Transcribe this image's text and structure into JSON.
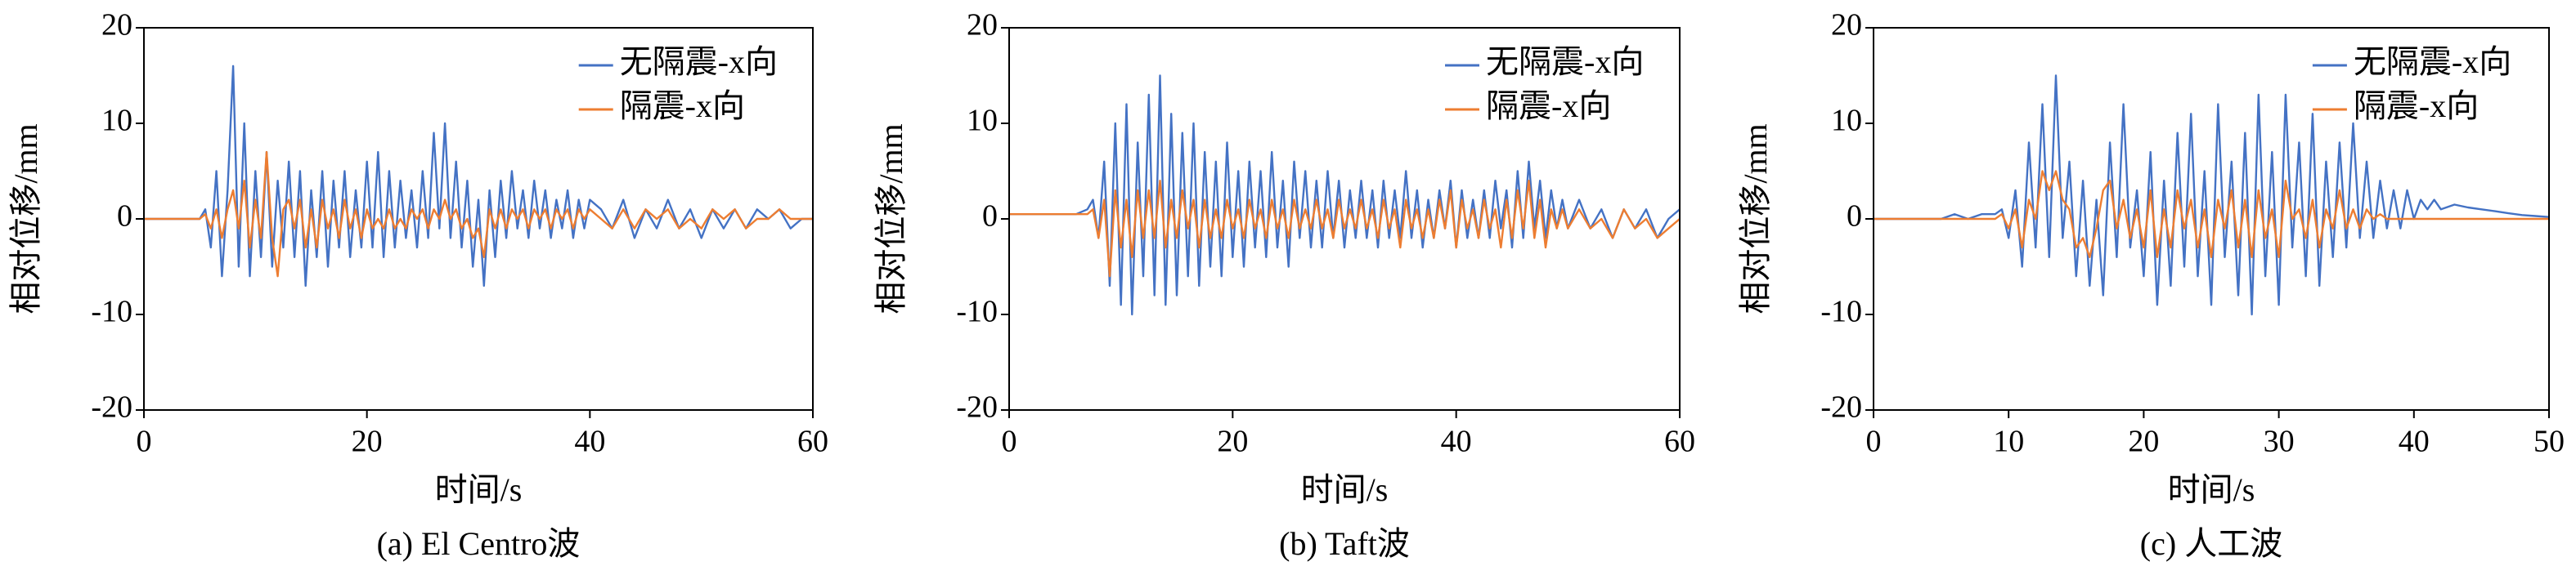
{
  "chart_data": [
    {
      "type": "line",
      "caption": "(a) El Centro波",
      "xlabel": "时间/s",
      "ylabel": "相对位移/mm",
      "xlim": [
        0,
        60
      ],
      "xticks": [
        0,
        20,
        40,
        60
      ],
      "ylim": [
        -20,
        20
      ],
      "yticks": [
        -20,
        -10,
        0,
        10,
        20
      ],
      "legend": "upper right",
      "x": [
        0,
        1,
        2,
        3,
        4,
        5,
        5.5,
        6,
        6.5,
        7,
        7.5,
        8,
        8.5,
        9,
        9.5,
        10,
        10.5,
        11,
        11.5,
        12,
        12.5,
        13,
        13.5,
        14,
        14.5,
        15,
        15.5,
        16,
        16.5,
        17,
        17.5,
        18,
        18.5,
        19,
        19.5,
        20,
        20.5,
        21,
        21.5,
        22,
        22.5,
        23,
        23.5,
        24,
        24.5,
        25,
        25.5,
        26,
        26.5,
        27,
        27.5,
        28,
        28.5,
        29,
        29.5,
        30,
        30.5,
        31,
        31.5,
        32,
        32.5,
        33,
        33.5,
        34,
        34.5,
        35,
        35.5,
        36,
        36.5,
        37,
        37.5,
        38,
        38.5,
        39,
        39.5,
        40,
        41,
        42,
        43,
        44,
        45,
        46,
        47,
        48,
        49,
        50,
        51,
        52,
        53,
        54,
        55,
        56,
        57,
        58,
        59,
        60
      ],
      "series": [
        {
          "name": "无隔震-x向",
          "color": "#4472c4",
          "values": [
            0,
            0,
            0,
            0,
            0,
            0,
            1,
            -3,
            5,
            -6,
            3,
            16,
            -5,
            10,
            -6,
            5,
            -4,
            7,
            -5,
            4,
            -3,
            6,
            -4,
            5,
            -7,
            3,
            -4,
            5,
            -5,
            4,
            -3,
            5,
            -4,
            3,
            -3,
            6,
            -3,
            7,
            -4,
            5,
            -3,
            4,
            -2,
            3,
            -3,
            5,
            -2,
            9,
            -1,
            10,
            -2,
            6,
            -3,
            4,
            -5,
            2,
            -7,
            3,
            -4,
            4,
            -2,
            5,
            -1,
            3,
            -2,
            4,
            -1,
            3,
            -2,
            2,
            -1,
            3,
            -2,
            2,
            -1,
            2,
            1,
            -1,
            2,
            -2,
            1,
            -1,
            2,
            -1,
            1,
            -2,
            1,
            -1,
            1,
            -1,
            1,
            0,
            1,
            -1,
            0,
            0
          ]
        },
        {
          "name": "隔震-x向",
          "color": "#ed7d31",
          "values": [
            0,
            0,
            0,
            0,
            0,
            0,
            0.5,
            -1,
            1,
            -2,
            1,
            3,
            -1,
            4,
            -3,
            2,
            -2,
            7,
            -2,
            -6,
            1,
            2,
            -1,
            2,
            -3,
            1,
            -3,
            2,
            -1,
            1,
            -2,
            2,
            -1,
            1,
            -2,
            1,
            -1,
            0,
            -1,
            1,
            -1,
            0,
            -1,
            1,
            0,
            1,
            -1,
            1,
            0,
            2,
            0,
            1,
            -1,
            0,
            -2,
            -1,
            -4,
            1,
            -1,
            1,
            -1,
            1,
            0,
            1,
            -1,
            1,
            0,
            1,
            -1,
            1,
            0,
            1,
            -1,
            1,
            0,
            1,
            0,
            -1,
            1,
            -1,
            1,
            0,
            1,
            -1,
            0,
            -1,
            1,
            0,
            1,
            -1,
            0,
            0,
            1,
            0,
            0,
            0
          ]
        }
      ]
    },
    {
      "type": "line",
      "caption": "(b) Taft波",
      "xlabel": "时间/s",
      "ylabel": "相对位移/mm",
      "xlim": [
        0,
        60
      ],
      "xticks": [
        0,
        20,
        40,
        60
      ],
      "ylim": [
        -20,
        20
      ],
      "yticks": [
        -20,
        -10,
        0,
        10,
        20
      ],
      "legend": "upper right",
      "x": [
        0,
        1,
        2,
        3,
        4,
        5,
        6,
        7,
        7.5,
        8,
        8.5,
        9,
        9.5,
        10,
        10.5,
        11,
        11.5,
        12,
        12.5,
        13,
        13.5,
        14,
        14.5,
        15,
        15.5,
        16,
        16.5,
        17,
        17.5,
        18,
        18.5,
        19,
        19.5,
        20,
        20.5,
        21,
        21.5,
        22,
        22.5,
        23,
        23.5,
        24,
        24.5,
        25,
        25.5,
        26,
        26.5,
        27,
        27.5,
        28,
        28.5,
        29,
        29.5,
        30,
        30.5,
        31,
        31.5,
        32,
        32.5,
        33,
        33.5,
        34,
        34.5,
        35,
        35.5,
        36,
        36.5,
        37,
        37.5,
        38,
        38.5,
        39,
        39.5,
        40,
        40.5,
        41,
        41.5,
        42,
        42.5,
        43,
        43.5,
        44,
        44.5,
        45,
        45.5,
        46,
        46.5,
        47,
        47.5,
        48,
        48.5,
        49,
        49.5,
        50,
        51,
        52,
        53,
        54,
        55,
        56,
        57,
        58,
        59,
        60
      ],
      "series": [
        {
          "name": "无隔震-x向",
          "color": "#4472c4",
          "values": [
            0.5,
            0.5,
            0.5,
            0.5,
            0.5,
            0.5,
            0.5,
            1,
            2,
            -2,
            6,
            -7,
            10,
            -9,
            12,
            -10,
            8,
            -6,
            13,
            -8,
            15,
            -9,
            11,
            -8,
            9,
            -6,
            10,
            -7,
            7,
            -5,
            6,
            -6,
            8,
            -4,
            5,
            -5,
            6,
            -3,
            5,
            -4,
            7,
            -3,
            4,
            -5,
            6,
            -2,
            5,
            -3,
            4,
            -3,
            5,
            -2,
            4,
            -3,
            3,
            -2,
            4,
            -2,
            3,
            -3,
            4,
            -2,
            3,
            -2,
            5,
            -2,
            3,
            -3,
            2,
            -2,
            3,
            -1,
            4,
            -3,
            3,
            -2,
            2,
            -2,
            3,
            -2,
            4,
            -1,
            3,
            -3,
            5,
            -2,
            6,
            -1,
            4,
            -2,
            3,
            -1,
            2,
            -1,
            2,
            -1,
            1,
            -2,
            1,
            -1,
            1,
            -2,
            0,
            1
          ]
        },
        {
          "name": "隔震-x向",
          "color": "#ed7d31",
          "values": [
            0.5,
            0.5,
            0.5,
            0.5,
            0.5,
            0.5,
            0.5,
            0.5,
            1,
            -2,
            2,
            -6,
            3,
            -3,
            2,
            -4,
            3,
            -2,
            3,
            -2,
            4,
            -3,
            2,
            -2,
            3,
            -1,
            2,
            -3,
            2,
            -2,
            1,
            -2,
            2,
            -1,
            1,
            -2,
            2,
            -1,
            1,
            -2,
            2,
            -1,
            1,
            -2,
            2,
            -1,
            1,
            -1,
            2,
            -1,
            1,
            -2,
            2,
            -1,
            1,
            -1,
            2,
            -1,
            1,
            -2,
            2,
            -1,
            1,
            -3,
            2,
            -1,
            1,
            -2,
            1,
            -2,
            2,
            -1,
            3,
            -3,
            2,
            -1,
            1,
            -2,
            2,
            -1,
            1,
            -3,
            2,
            -2,
            3,
            -1,
            4,
            -2,
            2,
            -3,
            1,
            -1,
            1,
            -1,
            1,
            -1,
            0,
            -2,
            1,
            -1,
            0,
            -2,
            -1,
            0
          ]
        }
      ]
    },
    {
      "type": "line",
      "caption": "(c) 人工波",
      "xlabel": "时间/s",
      "ylabel": "相对位移/mm",
      "xlim": [
        0,
        50
      ],
      "xticks": [
        0,
        10,
        20,
        30,
        40,
        50
      ],
      "ylim": [
        -20,
        20
      ],
      "yticks": [
        -20,
        -10,
        0,
        10,
        20
      ],
      "legend": "upper right",
      "x": [
        0,
        1,
        2,
        3,
        4,
        5,
        6,
        7,
        8,
        9,
        9.5,
        10,
        10.5,
        11,
        11.5,
        12,
        12.5,
        13,
        13.5,
        14,
        14.5,
        15,
        15.5,
        16,
        16.5,
        17,
        17.5,
        18,
        18.5,
        19,
        19.5,
        20,
        20.5,
        21,
        21.5,
        22,
        22.5,
        23,
        23.5,
        24,
        24.5,
        25,
        25.5,
        26,
        26.5,
        27,
        27.5,
        28,
        28.5,
        29,
        29.5,
        30,
        30.5,
        31,
        31.5,
        32,
        32.5,
        33,
        33.5,
        34,
        34.5,
        35,
        35.5,
        36,
        36.5,
        37,
        37.5,
        38,
        38.5,
        39,
        39.5,
        40,
        40.5,
        41,
        41.5,
        42,
        43,
        44,
        45,
        46,
        47,
        48,
        49,
        50
      ],
      "series": [
        {
          "name": "无隔震-x向",
          "color": "#4472c4",
          "values": [
            0,
            0,
            0,
            0,
            0,
            0,
            0.5,
            0,
            0.5,
            0.5,
            1,
            -2,
            3,
            -5,
            8,
            -3,
            12,
            -4,
            15,
            -2,
            6,
            -6,
            4,
            -7,
            2,
            -8,
            8,
            -4,
            12,
            -3,
            3,
            -6,
            7,
            -9,
            4,
            -7,
            9,
            -5,
            11,
            -6,
            5,
            -9,
            12,
            -4,
            6,
            -8,
            9,
            -10,
            13,
            -6,
            7,
            -9,
            13,
            -3,
            8,
            -6,
            11,
            -7,
            6,
            -4,
            8,
            -3,
            10,
            -2,
            6,
            -2,
            4,
            -1,
            3,
            -1,
            3,
            0,
            2,
            1,
            2,
            1,
            1.5,
            1.2,
            1,
            0.8,
            0.6,
            0.4,
            0.3,
            0.2
          ]
        },
        {
          "name": "隔震-x向",
          "color": "#ed7d31",
          "values": [
            0,
            0,
            0,
            0,
            0,
            0,
            0,
            0,
            0,
            0,
            0.5,
            -1,
            1,
            -3,
            2,
            0,
            5,
            3,
            5,
            2,
            1,
            -3,
            -2,
            -4,
            -1,
            3,
            4,
            -1,
            2,
            -2,
            1,
            -3,
            3,
            -4,
            1,
            -3,
            3,
            -1,
            2,
            -3,
            1,
            -4,
            2,
            -1,
            3,
            -3,
            2,
            -4,
            3,
            -2,
            1,
            -4,
            4,
            0,
            1,
            -2,
            2,
            -3,
            1,
            -1,
            3,
            -1,
            1,
            -1,
            1,
            0,
            0.5,
            0,
            0,
            0,
            0,
            0,
            0,
            0,
            0,
            0,
            0,
            0,
            0,
            0,
            0,
            0,
            0,
            0
          ]
        }
      ]
    }
  ]
}
